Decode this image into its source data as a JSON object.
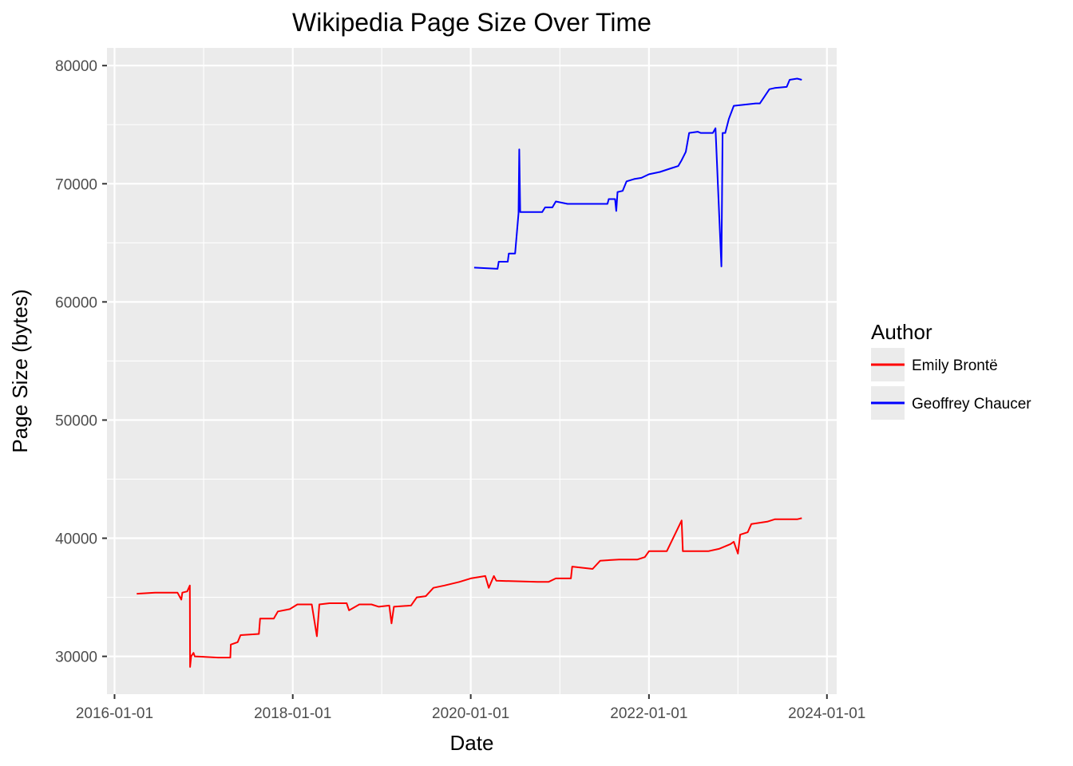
{
  "chart_data": {
    "type": "line",
    "title": "Wikipedia Page Size Over Time",
    "xlabel": "Date",
    "ylabel": "Page Size (bytes)",
    "x_type": "date",
    "xlim": [
      "2015-12-01",
      "2024-02-10"
    ],
    "ylim": [
      26800,
      81500
    ],
    "x_ticks": [
      "2016-01-01",
      "2018-01-01",
      "2020-01-01",
      "2022-01-01",
      "2024-01-01"
    ],
    "y_ticks": [
      30000,
      40000,
      50000,
      60000,
      70000,
      80000
    ],
    "grid": true,
    "legend_title": "Author",
    "legend_position": "right",
    "series": [
      {
        "name": "Emily Brontë",
        "color": "#ff0000",
        "points": [
          [
            "2016-04-01",
            35300
          ],
          [
            "2016-06-15",
            35400
          ],
          [
            "2016-09-15",
            35400
          ],
          [
            "2016-10-01",
            34800
          ],
          [
            "2016-10-05",
            35400
          ],
          [
            "2016-10-25",
            35500
          ],
          [
            "2016-11-05",
            36000
          ],
          [
            "2016-11-06",
            29100
          ],
          [
            "2016-11-10",
            30000
          ],
          [
            "2016-11-20",
            30300
          ],
          [
            "2016-11-25",
            30000
          ],
          [
            "2017-03-01",
            29900
          ],
          [
            "2017-04-20",
            29900
          ],
          [
            "2017-04-22",
            31000
          ],
          [
            "2017-05-20",
            31200
          ],
          [
            "2017-06-01",
            31800
          ],
          [
            "2017-08-15",
            31900
          ],
          [
            "2017-08-20",
            33200
          ],
          [
            "2017-10-15",
            33200
          ],
          [
            "2017-11-01",
            33800
          ],
          [
            "2017-12-20",
            34000
          ],
          [
            "2018-01-20",
            34400
          ],
          [
            "2018-03-20",
            34400
          ],
          [
            "2018-04-10",
            31700
          ],
          [
            "2018-04-20",
            34400
          ],
          [
            "2018-06-01",
            34500
          ],
          [
            "2018-08-10",
            34500
          ],
          [
            "2018-08-20",
            33900
          ],
          [
            "2018-10-01",
            34400
          ],
          [
            "2018-11-20",
            34400
          ],
          [
            "2018-12-20",
            34200
          ],
          [
            "2019-02-01",
            34300
          ],
          [
            "2019-02-10",
            32800
          ],
          [
            "2019-02-20",
            34200
          ],
          [
            "2019-05-01",
            34300
          ],
          [
            "2019-05-25",
            35000
          ],
          [
            "2019-07-01",
            35100
          ],
          [
            "2019-08-01",
            35800
          ],
          [
            "2019-09-15",
            36000
          ],
          [
            "2019-11-15",
            36300
          ],
          [
            "2020-01-01",
            36600
          ],
          [
            "2020-03-01",
            36800
          ],
          [
            "2020-03-15",
            35800
          ],
          [
            "2020-04-05",
            36800
          ],
          [
            "2020-04-15",
            36400
          ],
          [
            "2020-10-01",
            36300
          ],
          [
            "2020-11-15",
            36300
          ],
          [
            "2020-12-15",
            36600
          ],
          [
            "2021-02-15",
            36600
          ],
          [
            "2021-02-20",
            37600
          ],
          [
            "2021-05-15",
            37400
          ],
          [
            "2021-06-15",
            38100
          ],
          [
            "2021-09-01",
            38200
          ],
          [
            "2021-11-15",
            38200
          ],
          [
            "2021-12-15",
            38400
          ],
          [
            "2022-01-01",
            38900
          ],
          [
            "2022-03-15",
            38900
          ],
          [
            "2022-05-15",
            41500
          ],
          [
            "2022-05-20",
            38900
          ],
          [
            "2022-09-01",
            38900
          ],
          [
            "2022-10-15",
            39100
          ],
          [
            "2022-12-01",
            39500
          ],
          [
            "2022-12-15",
            39700
          ],
          [
            "2023-01-01",
            38700
          ],
          [
            "2023-01-10",
            40300
          ],
          [
            "2023-02-10",
            40500
          ],
          [
            "2023-02-25",
            41200
          ],
          [
            "2023-05-01",
            41400
          ],
          [
            "2023-06-01",
            41600
          ],
          [
            "2023-09-01",
            41600
          ],
          [
            "2023-09-20",
            41700
          ]
        ]
      },
      {
        "name": "Geoffrey Chaucer",
        "color": "#0000ff",
        "points": [
          [
            "2020-01-15",
            62900
          ],
          [
            "2020-04-20",
            62800
          ],
          [
            "2020-04-25",
            63400
          ],
          [
            "2020-06-01",
            63400
          ],
          [
            "2020-06-05",
            64100
          ],
          [
            "2020-07-01",
            64100
          ],
          [
            "2020-07-15",
            67500
          ],
          [
            "2020-07-18",
            72900
          ],
          [
            "2020-07-22",
            67600
          ],
          [
            "2020-10-20",
            67600
          ],
          [
            "2020-11-01",
            68000
          ],
          [
            "2020-12-01",
            68000
          ],
          [
            "2020-12-15",
            68500
          ],
          [
            "2021-02-01",
            68300
          ],
          [
            "2021-05-01",
            68300
          ],
          [
            "2021-06-20",
            68300
          ],
          [
            "2021-07-15",
            68300
          ],
          [
            "2021-07-20",
            68700
          ],
          [
            "2021-08-15",
            68700
          ],
          [
            "2021-08-20",
            67700
          ],
          [
            "2021-08-25",
            69300
          ],
          [
            "2021-09-15",
            69400
          ],
          [
            "2021-10-01",
            70200
          ],
          [
            "2021-11-01",
            70400
          ],
          [
            "2021-12-01",
            70500
          ],
          [
            "2022-01-01",
            70800
          ],
          [
            "2022-02-15",
            71000
          ],
          [
            "2022-04-01",
            71300
          ],
          [
            "2022-05-01",
            71500
          ],
          [
            "2022-05-15",
            72000
          ],
          [
            "2022-06-01",
            72700
          ],
          [
            "2022-06-15",
            74300
          ],
          [
            "2022-07-20",
            74400
          ],
          [
            "2022-08-01",
            74300
          ],
          [
            "2022-09-20",
            74300
          ],
          [
            "2022-10-01",
            74700
          ],
          [
            "2022-10-25",
            63000
          ],
          [
            "2022-10-30",
            74300
          ],
          [
            "2022-11-10",
            74300
          ],
          [
            "2022-11-25",
            75500
          ],
          [
            "2022-12-15",
            76600
          ],
          [
            "2023-03-15",
            76800
          ],
          [
            "2023-04-01",
            76800
          ],
          [
            "2023-05-10",
            78000
          ],
          [
            "2023-06-01",
            78100
          ],
          [
            "2023-07-20",
            78200
          ],
          [
            "2023-08-01",
            78800
          ],
          [
            "2023-09-01",
            78900
          ],
          [
            "2023-09-20",
            78800
          ]
        ]
      }
    ]
  }
}
